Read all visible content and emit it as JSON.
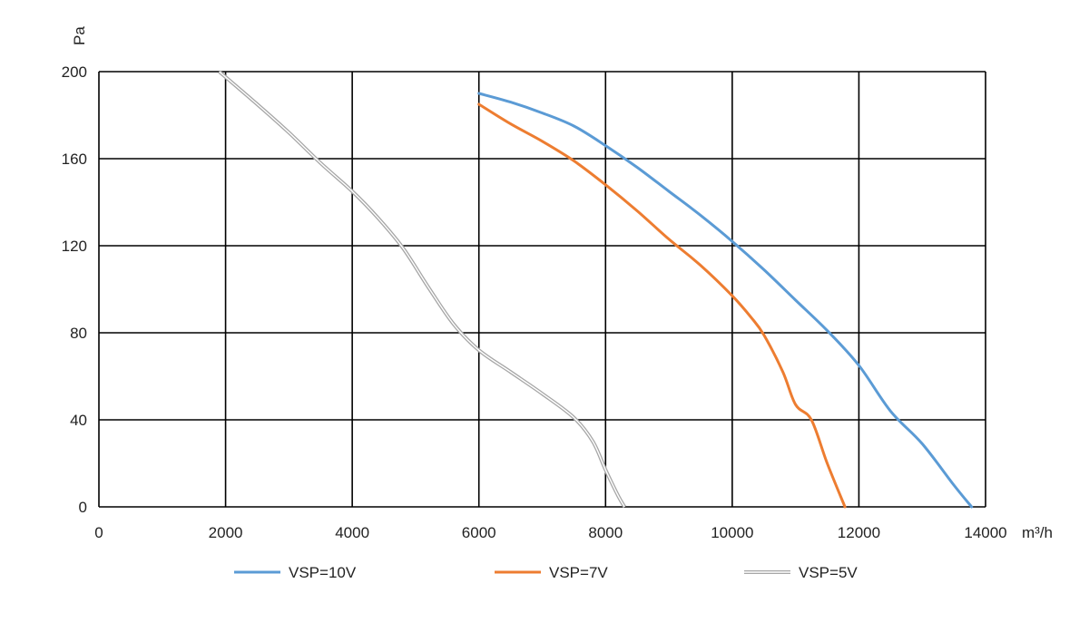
{
  "chart_data": {
    "type": "line",
    "title": "",
    "xlabel": "m³/h",
    "ylabel": "Pa",
    "xlim": [
      0,
      14000
    ],
    "ylim": [
      0,
      200
    ],
    "xticks": [
      0,
      2000,
      4000,
      6000,
      8000,
      10000,
      12000,
      14000
    ],
    "yticks": [
      0,
      40,
      80,
      120,
      160,
      200
    ],
    "grid": true,
    "legend_position": "bottom",
    "series": [
      {
        "name": "VSP=10V",
        "color": "#5b9bd5",
        "style": "solid",
        "x": [
          6000,
          6500,
          7000,
          7500,
          8000,
          8500,
          9000,
          9500,
          10000,
          10500,
          11000,
          11500,
          12000,
          12500,
          13000,
          13500,
          13780
        ],
        "y": [
          190,
          186,
          181,
          175,
          166,
          156,
          145,
          134,
          122,
          109,
          95,
          81,
          65,
          44,
          29,
          10,
          0
        ]
      },
      {
        "name": "VSP=7V",
        "color": "#ed7d31",
        "style": "solid",
        "x": [
          6000,
          6500,
          7000,
          7500,
          8000,
          8500,
          9000,
          9500,
          10000,
          10300,
          10500,
          10800,
          11000,
          11250,
          11500,
          11780
        ],
        "y": [
          185,
          176,
          168,
          159,
          148,
          136,
          123,
          111,
          97,
          87,
          79,
          62,
          47,
          40,
          20,
          0
        ]
      },
      {
        "name": "VSP=5V",
        "color": "#a6a6a6",
        "style": "double",
        "x": [
          1900,
          2500,
          3000,
          3500,
          4000,
          4400,
          4800,
          5200,
          5600,
          6000,
          6500,
          7000,
          7500,
          7800,
          8000,
          8200,
          8300
        ],
        "y": [
          200,
          185,
          172,
          158,
          145,
          133,
          119,
          101,
          84,
          72,
          62,
          52,
          41,
          30,
          17,
          5,
          0
        ]
      }
    ]
  }
}
